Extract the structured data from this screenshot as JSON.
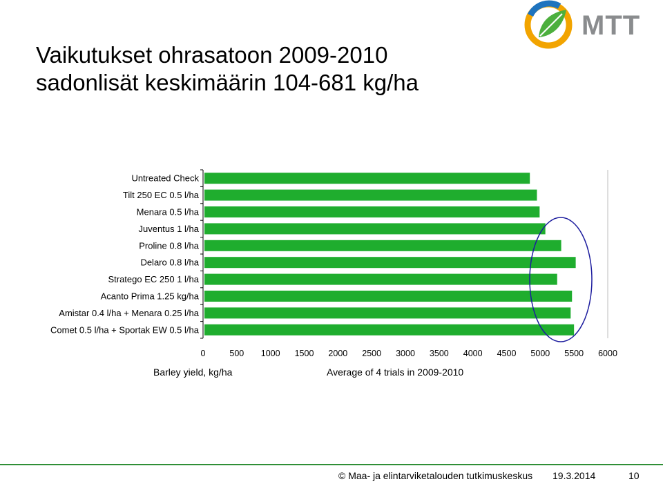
{
  "slide": {
    "title_line1": "Vaikutukset ohrasatoon 2009-2010",
    "title_line2": "sadonlisät keskimäärin 104-681 kg/ha",
    "logo_text": "MTT",
    "footer_copyright": "© Maa- ja elintarviketalouden tutkimuskeskus",
    "footer_date": "19.3.2014",
    "footer_page": "10"
  },
  "colors": {
    "bar": "#1fad2e",
    "ellipse": "#1c1c9e",
    "footer_line": "#2f8f36"
  },
  "chart_data": {
    "type": "bar",
    "orientation": "horizontal",
    "categories": [
      "Untreated Check",
      "Tilt 250 EC 0.5 l/ha",
      "Menara 0.5 l/ha",
      "Juventus 1 l/ha",
      "Proline 0.8 l/ha",
      "Delaro 0.8 l/ha",
      "Stratego EC 250 1 l/ha",
      "Acanto Prima 1.25 kg/ha",
      "Amistar 0.4 l/ha + Menara 0.25 l/ha",
      "Comet 0.5 l/ha + Sportak EW 0.5 l/ha"
    ],
    "values": [
      4845,
      4950,
      4990,
      5075,
      5310,
      5525,
      5250,
      5470,
      5450,
      5500
    ],
    "xlabel": "Barley yield, kg/ha",
    "note": "Average of 4 trials in 2009-2010",
    "xlim": [
      0,
      6000
    ],
    "xticks": [
      0,
      500,
      1000,
      1500,
      2000,
      2500,
      3000,
      3500,
      4000,
      4500,
      5000,
      5500,
      6000
    ],
    "grid": false,
    "legend": "none"
  }
}
